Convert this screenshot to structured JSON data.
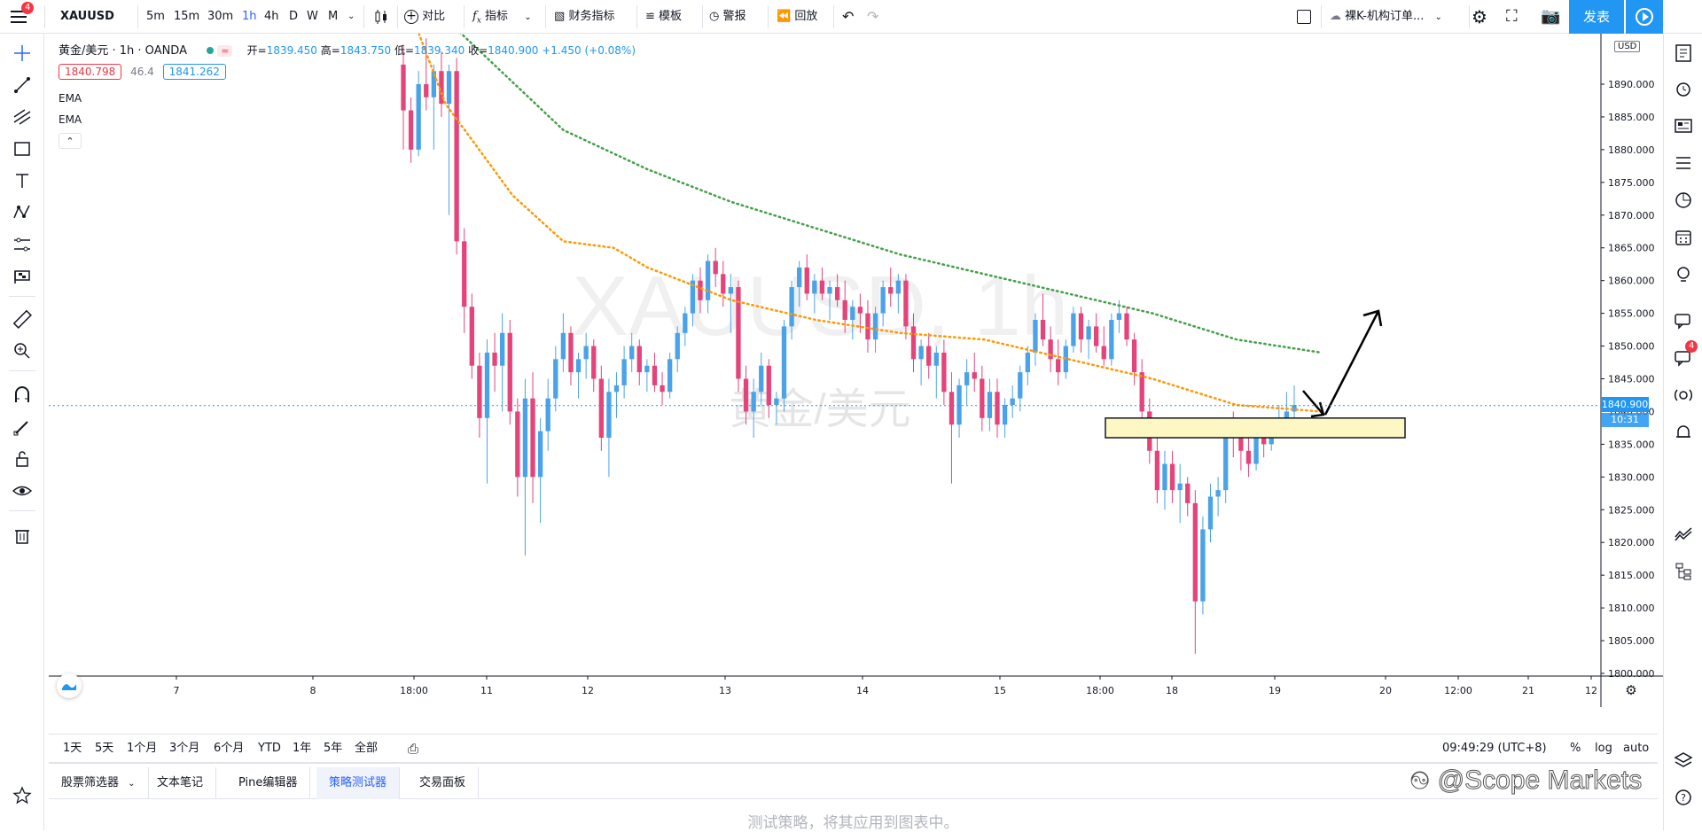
{
  "toolbar": {
    "menu_badge": "4",
    "symbol": "XAUUSD",
    "intervals": [
      "5m",
      "15m",
      "30m",
      "1h",
      "4h",
      "D",
      "W",
      "M"
    ],
    "active_interval": "1h",
    "compare": "对比",
    "indicators": "指标",
    "financials": "财务指标",
    "templates": "模板",
    "alert": "警报",
    "replay": "回放",
    "layout_name": "裸K-机构订单...",
    "publish": "发表"
  },
  "legend": {
    "title": "黄金/美元 · 1h · OANDA",
    "open_label": "开=",
    "open": "1839.450",
    "high_label": "高=",
    "high": "1843.750",
    "low_label": "低=",
    "low": "1839.340",
    "close_label": "收=",
    "close": "1840.900",
    "change": "+1.450 (+0.08%)",
    "bid": "1840.798",
    "spread": "46.4",
    "ask": "1841.262",
    "indicator_1": "EMA",
    "indicator_2": "EMA"
  },
  "watermark": {
    "symbol": "XAUUSD, 1h",
    "name": "黄金/美元"
  },
  "price_axis": {
    "currency": "USD",
    "last_price": "1840.900",
    "countdown": "10:31",
    "last_price_color": "#2196f3"
  },
  "time_axis": {
    "clock": "09:49:29 (UTC+8)",
    "percent": "%",
    "log": "log",
    "auto": "auto"
  },
  "ranges": [
    "1天",
    "5天",
    "1个月",
    "3个月",
    "6个月",
    "YTD",
    "1年",
    "5年",
    "全部"
  ],
  "panel": {
    "tabs": [
      "股票筛选器",
      "文本笔记",
      "Pine编辑器",
      "策略测试器",
      "交易面板"
    ],
    "active_tab": "策略测试器",
    "message": "测试策略，将其应用到图表中。"
  },
  "right_badge": "4",
  "overlay_watermark": "@Scope Markets",
  "colors": {
    "up": "#26a69a",
    "up_candle": "#4aa3e8",
    "down": "#e4447a",
    "ema_fast": "#ff9800",
    "ema_slow": "#43a047",
    "zone_fill": "#fdf7c3",
    "accent": "#2962ff"
  },
  "chart_data": {
    "type": "candlestick",
    "symbol": "XAUUSD",
    "interval": "1h",
    "ylim": [
      1797,
      1895
    ],
    "y_ticks": [
      1890,
      1885,
      1880,
      1875,
      1870,
      1865,
      1860,
      1855,
      1850,
      1845,
      1840,
      1835,
      1830,
      1825,
      1820,
      1815,
      1810,
      1805,
      1800
    ],
    "x_tick_labels": [
      "7",
      "8",
      "18:00",
      "11",
      "12",
      "13",
      "14",
      "15",
      "18:00",
      "18",
      "19",
      "20",
      "12:00",
      "21",
      "12"
    ],
    "candles_ohlc": [
      [
        1893,
        1896,
        1880,
        1886
      ],
      [
        1886,
        1888,
        1878,
        1880
      ],
      [
        1880,
        1892,
        1879,
        1890
      ],
      [
        1890,
        1897,
        1886,
        1888
      ],
      [
        1888,
        1893,
        1880,
        1892
      ],
      [
        1892,
        1895,
        1885,
        1887
      ],
      [
        1887,
        1893,
        1870,
        1892
      ],
      [
        1892,
        1894,
        1864,
        1866
      ],
      [
        1866,
        1868,
        1852,
        1856
      ],
      [
        1856,
        1858,
        1845,
        1847
      ],
      [
        1847,
        1849,
        1836,
        1839
      ],
      [
        1839,
        1851,
        1829,
        1849
      ],
      [
        1849,
        1852,
        1843,
        1847
      ],
      [
        1847,
        1855,
        1840,
        1852
      ],
      [
        1852,
        1854,
        1838,
        1840
      ],
      [
        1840,
        1842,
        1827,
        1830
      ],
      [
        1830,
        1845,
        1818,
        1842
      ],
      [
        1842,
        1846,
        1826,
        1830
      ],
      [
        1830,
        1839,
        1823,
        1837
      ],
      [
        1837,
        1845,
        1834,
        1842
      ],
      [
        1842,
        1850,
        1840,
        1848
      ],
      [
        1848,
        1855,
        1846,
        1852
      ],
      [
        1852,
        1853,
        1844,
        1846
      ],
      [
        1846,
        1849,
        1842,
        1848
      ],
      [
        1848,
        1852,
        1845,
        1850
      ],
      [
        1850,
        1851,
        1843,
        1845
      ],
      [
        1845,
        1847,
        1834,
        1836
      ],
      [
        1836,
        1845,
        1830,
        1843
      ],
      [
        1843,
        1846,
        1839,
        1844
      ],
      [
        1844,
        1850,
        1842,
        1848
      ],
      [
        1848,
        1852,
        1846,
        1850
      ],
      [
        1850,
        1851,
        1844,
        1846
      ],
      [
        1846,
        1848,
        1843,
        1847
      ],
      [
        1847,
        1849,
        1843,
        1844
      ],
      [
        1844,
        1846,
        1841,
        1843
      ],
      [
        1843,
        1849,
        1842,
        1848
      ],
      [
        1848,
        1853,
        1846,
        1852
      ],
      [
        1852,
        1856,
        1850,
        1855
      ],
      [
        1855,
        1861,
        1853,
        1860
      ],
      [
        1860,
        1862,
        1855,
        1857
      ],
      [
        1857,
        1864,
        1855,
        1863
      ],
      [
        1863,
        1865,
        1859,
        1861
      ],
      [
        1861,
        1863,
        1856,
        1858
      ],
      [
        1858,
        1861,
        1852,
        1859
      ],
      [
        1859,
        1860,
        1843,
        1845
      ],
      [
        1845,
        1847,
        1838,
        1840
      ],
      [
        1840,
        1845,
        1836,
        1843
      ],
      [
        1843,
        1849,
        1841,
        1847
      ],
      [
        1847,
        1848,
        1839,
        1841
      ],
      [
        1841,
        1843,
        1838,
        1842
      ],
      [
        1842,
        1854,
        1840,
        1853
      ],
      [
        1853,
        1860,
        1851,
        1859
      ],
      [
        1859,
        1863,
        1856,
        1862
      ],
      [
        1862,
        1864,
        1857,
        1858
      ],
      [
        1858,
        1861,
        1855,
        1860
      ],
      [
        1860,
        1862,
        1857,
        1858
      ],
      [
        1858,
        1860,
        1854,
        1859
      ],
      [
        1859,
        1861,
        1856,
        1857
      ],
      [
        1857,
        1860,
        1852,
        1854
      ],
      [
        1854,
        1857,
        1851,
        1856
      ],
      [
        1856,
        1858,
        1852,
        1855
      ],
      [
        1855,
        1857,
        1849,
        1851
      ],
      [
        1851,
        1856,
        1849,
        1855
      ],
      [
        1855,
        1860,
        1853,
        1859
      ],
      [
        1859,
        1862,
        1856,
        1858
      ],
      [
        1858,
        1861,
        1855,
        1860
      ],
      [
        1860,
        1861,
        1851,
        1853
      ],
      [
        1853,
        1855,
        1846,
        1848
      ],
      [
        1848,
        1851,
        1844,
        1850
      ],
      [
        1850,
        1852,
        1845,
        1847
      ],
      [
        1847,
        1850,
        1842,
        1849
      ],
      [
        1849,
        1851,
        1841,
        1843
      ],
      [
        1843,
        1846,
        1829,
        1838
      ],
      [
        1838,
        1845,
        1836,
        1844
      ],
      [
        1844,
        1848,
        1841,
        1846
      ],
      [
        1846,
        1849,
        1843,
        1845
      ],
      [
        1845,
        1847,
        1837,
        1839
      ],
      [
        1839,
        1845,
        1837,
        1843
      ],
      [
        1843,
        1845,
        1836,
        1838
      ],
      [
        1838,
        1842,
        1836,
        1841
      ],
      [
        1841,
        1844,
        1839,
        1842
      ],
      [
        1842,
        1847,
        1840,
        1846
      ],
      [
        1846,
        1850,
        1844,
        1849
      ],
      [
        1849,
        1855,
        1847,
        1854
      ],
      [
        1854,
        1858,
        1850,
        1851
      ],
      [
        1851,
        1853,
        1846,
        1848
      ],
      [
        1848,
        1851,
        1844,
        1846
      ],
      [
        1846,
        1851,
        1845,
        1850
      ],
      [
        1850,
        1856,
        1849,
        1855
      ],
      [
        1855,
        1856,
        1849,
        1851
      ],
      [
        1851,
        1854,
        1848,
        1853
      ],
      [
        1853,
        1855,
        1849,
        1850
      ],
      [
        1850,
        1853,
        1847,
        1848
      ],
      [
        1848,
        1855,
        1847,
        1854
      ],
      [
        1854,
        1857,
        1852,
        1855
      ],
      [
        1855,
        1856,
        1850,
        1851
      ],
      [
        1851,
        1852,
        1844,
        1846
      ],
      [
        1846,
        1848,
        1838,
        1840
      ],
      [
        1840,
        1842,
        1832,
        1834
      ],
      [
        1834,
        1836,
        1826,
        1828
      ],
      [
        1828,
        1834,
        1825,
        1832
      ],
      [
        1832,
        1834,
        1826,
        1828
      ],
      [
        1828,
        1832,
        1823,
        1829
      ],
      [
        1829,
        1830,
        1824,
        1826
      ],
      [
        1826,
        1828,
        1803,
        1811
      ],
      [
        1811,
        1824,
        1809,
        1822
      ],
      [
        1822,
        1829,
        1820,
        1827
      ],
      [
        1827,
        1830,
        1824,
        1828
      ],
      [
        1828,
        1839,
        1826,
        1838
      ],
      [
        1838,
        1840,
        1833,
        1836
      ],
      [
        1836,
        1839,
        1831,
        1834
      ],
      [
        1834,
        1836,
        1830,
        1832
      ],
      [
        1832,
        1837,
        1831,
        1836
      ],
      [
        1836,
        1838,
        1833,
        1835
      ],
      [
        1835,
        1839,
        1834,
        1838
      ],
      [
        1838,
        1841,
        1836,
        1839
      ],
      [
        1839,
        1843,
        1838,
        1840
      ],
      [
        1840,
        1844,
        1839,
        1841
      ]
    ],
    "ema_fast_points": [
      [
        1855,
        1904
      ],
      [
        1880,
        1887
      ],
      [
        1900,
        1880
      ],
      [
        1920,
        1873
      ],
      [
        1950,
        1866
      ],
      [
        1980,
        1865
      ],
      [
        2000,
        1862
      ],
      [
        2050,
        1857
      ],
      [
        2100,
        1854
      ],
      [
        2150,
        1852
      ],
      [
        2200,
        1851
      ],
      [
        2250,
        1848
      ],
      [
        2300,
        1845
      ],
      [
        2350,
        1841
      ],
      [
        2400,
        1840
      ]
    ],
    "ema_slow_points": [
      [
        1880,
        1900
      ],
      [
        1950,
        1883
      ],
      [
        2000,
        1877
      ],
      [
        2050,
        1872
      ],
      [
        2100,
        1868
      ],
      [
        2150,
        1864
      ],
      [
        2200,
        1861
      ],
      [
        2250,
        1858
      ],
      [
        2300,
        1855
      ],
      [
        2350,
        1851
      ],
      [
        2400,
        1849
      ]
    ],
    "zone": {
      "price_top": 1839,
      "price_bottom": 1836
    },
    "last_price": 1840.9
  }
}
